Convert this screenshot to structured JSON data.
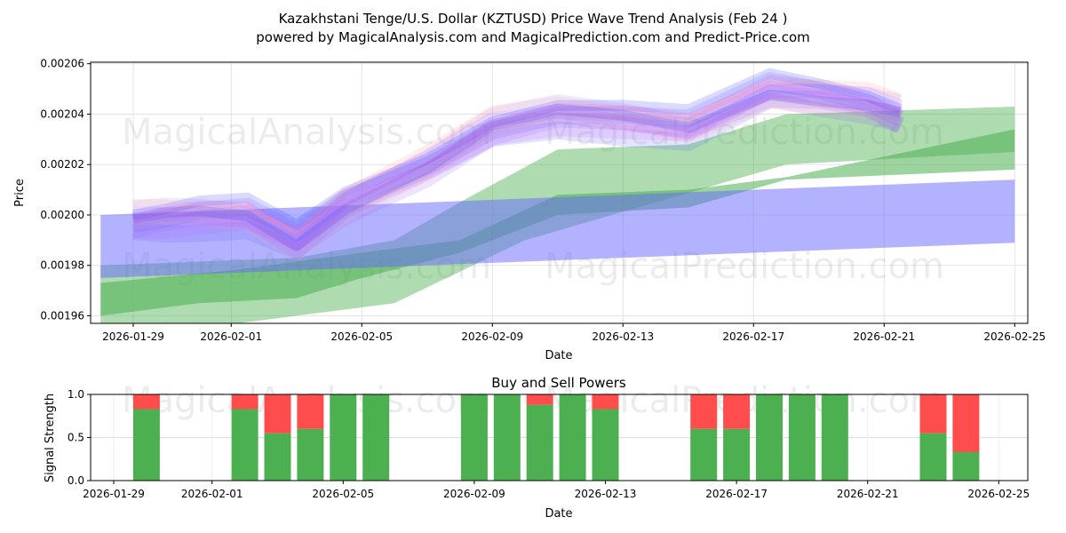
{
  "chart_data": [
    {
      "type": "area",
      "title": "Kazakhstani Tenge/U.S. Dollar (KZTUSD) Price Wave Trend Analysis (Feb 24 )",
      "subtitle": "powered by MagicalAnalysis.com and MagicalPrediction.com and Predict-Price.com",
      "xlabel": "Date",
      "ylabel": "Price",
      "ylim": [
        0.001957,
        0.0020606
      ],
      "x_ticks": [
        "2026-01-29",
        "2026-02-01",
        "2026-02-05",
        "2026-02-09",
        "2026-02-13",
        "2026-02-17",
        "2026-02-21",
        "2026-02-25"
      ],
      "y_ticks": [
        "0.00196",
        "0.00198",
        "0.00200",
        "0.00202",
        "0.00204",
        "0.00206"
      ],
      "grid": true,
      "bands_note_days_from_2026-01-29": true,
      "bands": [
        {
          "name": "green-wide",
          "color": "#4caf50",
          "opacity": 0.45,
          "upper": [
            [
              -1,
              0.00198
            ],
            [
              5,
              0.001983
            ],
            [
              8,
              0.00199
            ],
            [
              10,
              0.002005
            ],
            [
              13,
              0.002026
            ],
            [
              17,
              0.002028
            ],
            [
              20,
              0.00204
            ],
            [
              27,
              0.002043
            ]
          ],
          "lower": [
            [
              -1,
              0.00195
            ],
            [
              8,
              0.001965
            ],
            [
              12,
              0.00199
            ],
            [
              16,
              0.002005
            ],
            [
              20,
              0.00202
            ],
            [
              27,
              0.002025
            ]
          ]
        },
        {
          "name": "green-narrow",
          "color": "#4caf50",
          "opacity": 0.55,
          "upper": [
            [
              -1,
              0.001973
            ],
            [
              3,
              0.001978
            ],
            [
              7,
              0.001985
            ],
            [
              10,
              0.00199
            ],
            [
              13,
              0.002008
            ],
            [
              17,
              0.00201
            ],
            [
              20,
              0.002015
            ],
            [
              27,
              0.002034
            ]
          ],
          "lower": [
            [
              -1,
              0.00196
            ],
            [
              2,
              0.001965
            ],
            [
              5,
              0.001967
            ],
            [
              7,
              0.001975
            ],
            [
              10,
              0.001985
            ],
            [
              13,
              0.002
            ],
            [
              17,
              0.002003
            ],
            [
              20,
              0.002014
            ],
            [
              27,
              0.002018
            ]
          ]
        },
        {
          "name": "blue-band",
          "color": "#6666ff",
          "opacity": 0.5,
          "upper": [
            [
              -1,
              0.002
            ],
            [
              27,
              0.002014
            ]
          ],
          "lower": [
            [
              -1,
              0.001975
            ],
            [
              27,
              0.001989
            ]
          ]
        }
      ],
      "wave_center": [
        [
          0,
          0.001998
        ],
        [
          1,
          0.001999
        ],
        [
          2,
          0.002
        ],
        [
          3.5,
          0.002
        ],
        [
          5,
          0.00199
        ],
        [
          6.5,
          0.002005
        ],
        [
          9,
          0.00202
        ],
        [
          11,
          0.002035
        ],
        [
          13,
          0.00204
        ],
        [
          15,
          0.002038
        ],
        [
          17,
          0.002035
        ],
        [
          19.5,
          0.00205
        ],
        [
          21,
          0.002048
        ],
        [
          22.5,
          0.002045
        ],
        [
          23.5,
          0.00204
        ]
      ],
      "watermarks": [
        "MagicalAnalysis.com",
        "MagicalPrediction.com"
      ]
    },
    {
      "type": "bar",
      "title": "Buy and Sell Powers",
      "xlabel": "Date",
      "ylabel": "Signal Strength",
      "ylim": [
        0,
        1
      ],
      "y_ticks": [
        "0.0",
        "0.5",
        "1.0"
      ],
      "x_ticks": [
        "2026-01-29",
        "2026-02-01",
        "2026-02-05",
        "2026-02-09",
        "2026-02-13",
        "2026-02-17",
        "2026-02-21",
        "2026-02-25"
      ],
      "categories": [
        "2026-01-30",
        "2026-02-02",
        "2026-02-03",
        "2026-02-04",
        "2026-02-05",
        "2026-02-06",
        "2026-02-09",
        "2026-02-10",
        "2026-02-11",
        "2026-02-12",
        "2026-02-13",
        "2026-02-16",
        "2026-02-17",
        "2026-02-18",
        "2026-02-19",
        "2026-02-20",
        "2026-02-23",
        "2026-02-24"
      ],
      "day_offsets": [
        1,
        4,
        5,
        6,
        7,
        8,
        11,
        12,
        13,
        14,
        15,
        18,
        19,
        20,
        21,
        22,
        25,
        26
      ],
      "series": [
        {
          "name": "Buy",
          "color": "#4caf50",
          "values": [
            0.83,
            0.83,
            0.55,
            0.6,
            1,
            1,
            1,
            1,
            0.88,
            1,
            0.83,
            0.6,
            0.6,
            1,
            1,
            1,
            0.55,
            0.33
          ]
        },
        {
          "name": "Sell",
          "color": "#ff4d4d",
          "values": [
            0.17,
            0.17,
            0.45,
            0.4,
            0,
            0,
            0,
            0,
            0.12,
            0,
            0.17,
            0.4,
            0.4,
            0,
            0,
            0,
            0.45,
            0.67
          ]
        }
      ],
      "watermarks": [
        "MagicalAnalysis.com",
        "MagicalPrediction.com"
      ]
    }
  ]
}
